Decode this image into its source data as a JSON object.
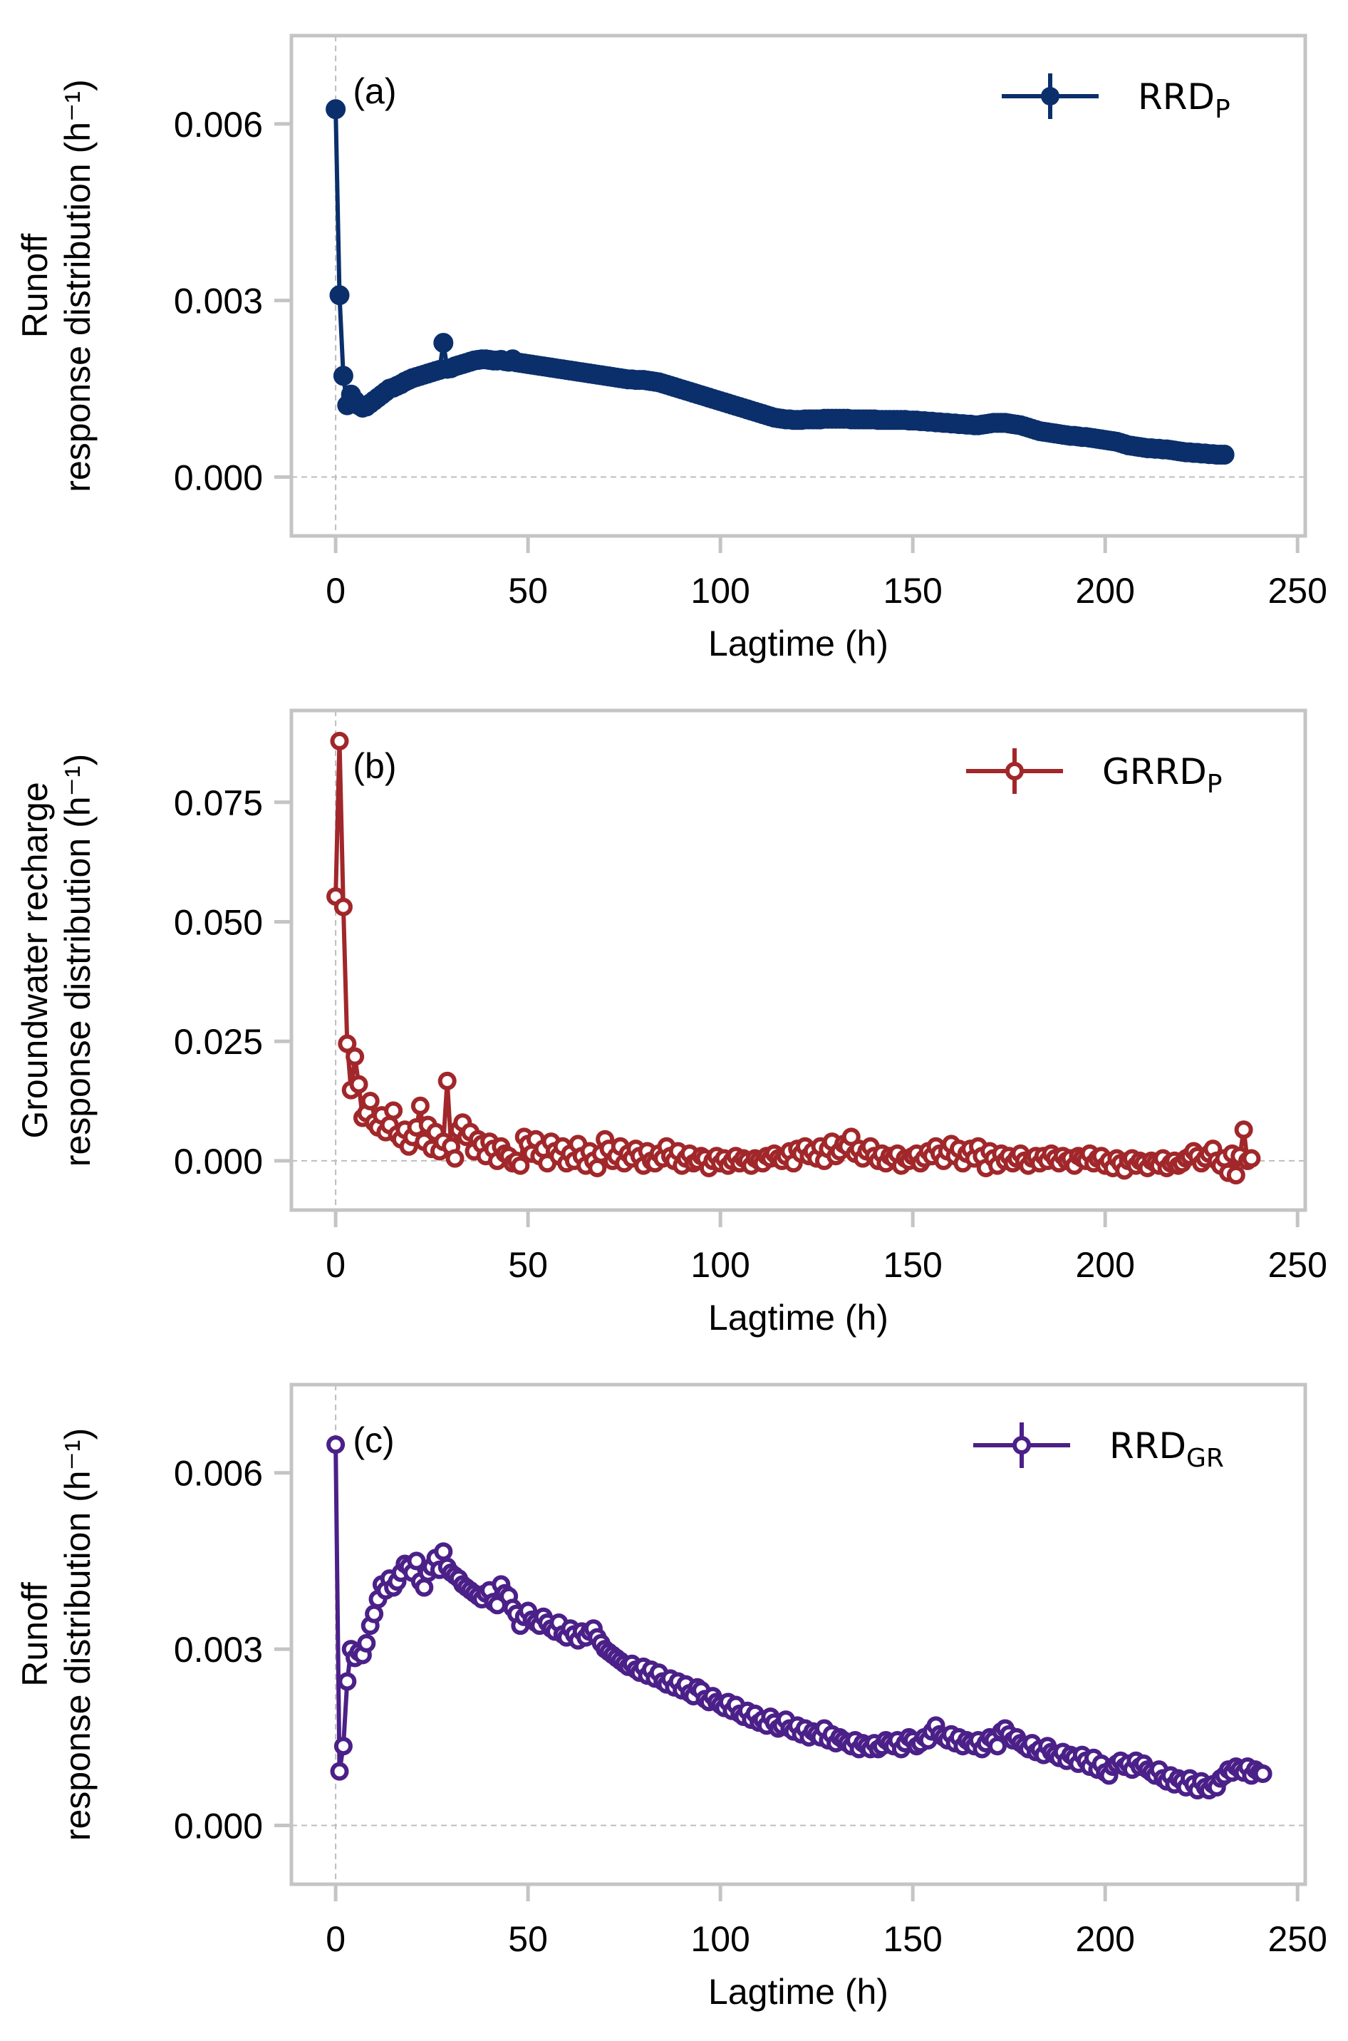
{
  "chart_data": [
    {
      "type": "line",
      "panel_label": "(a)",
      "xlabel": "Lagtime (h)",
      "ylabel_lines": [
        "Runoff",
        "response distribution (h⁻¹)"
      ],
      "xlim": [
        -11.5,
        252
      ],
      "ylim": [
        -0.001,
        0.0075
      ],
      "xticks": [
        0,
        50,
        100,
        150,
        200,
        250
      ],
      "xtick_labels": [
        "0",
        "50",
        "100",
        "150",
        "200",
        "250"
      ],
      "yticks": [
        0.0,
        0.003,
        0.006
      ],
      "ytick_labels": [
        "0.000",
        "0.003",
        "0.006"
      ],
      "zero_lines": true,
      "legend": {
        "label": "RRD",
        "subscript": "P",
        "placement": "top-right"
      },
      "marker": "filled-circle",
      "color": "#0a2f6b",
      "series": [
        {
          "name": "RRD_P",
          "x_start": 0,
          "x_step": 1,
          "values": [
            0.00625,
            0.00309,
            0.00172,
            0.00122,
            0.0014,
            0.0013,
            0.00122,
            0.00118,
            0.0012,
            0.00125,
            0.0013,
            0.00135,
            0.0014,
            0.00145,
            0.0015,
            0.00152,
            0.00155,
            0.00158,
            0.00162,
            0.00165,
            0.00168,
            0.0017,
            0.00172,
            0.00174,
            0.00176,
            0.00178,
            0.0018,
            0.00182,
            0.00228,
            0.00184,
            0.00185,
            0.00188,
            0.0019,
            0.00192,
            0.00194,
            0.00196,
            0.00198,
            0.00199,
            0.002,
            0.002,
            0.00199,
            0.00198,
            0.00198,
            0.00199,
            0.00197,
            0.00196,
            0.002,
            0.00195,
            0.00194,
            0.00193,
            0.00192,
            0.00191,
            0.0019,
            0.00189,
            0.00188,
            0.00187,
            0.00186,
            0.00185,
            0.00184,
            0.00183,
            0.00182,
            0.00181,
            0.0018,
            0.00179,
            0.00178,
            0.00177,
            0.00176,
            0.00175,
            0.00174,
            0.00173,
            0.00172,
            0.00171,
            0.0017,
            0.00169,
            0.00168,
            0.00167,
            0.00166,
            0.00166,
            0.00165,
            0.00165,
            0.00165,
            0.00164,
            0.00163,
            0.00162,
            0.00161,
            0.00159,
            0.00157,
            0.00155,
            0.00153,
            0.00151,
            0.00149,
            0.00147,
            0.00145,
            0.00143,
            0.00141,
            0.00139,
            0.00137,
            0.00135,
            0.00133,
            0.00131,
            0.00129,
            0.00127,
            0.00125,
            0.00123,
            0.00121,
            0.00119,
            0.00117,
            0.00115,
            0.00113,
            0.00111,
            0.00109,
            0.00107,
            0.00105,
            0.00103,
            0.00101,
            0.001,
            0.00099,
            0.00098,
            0.00098,
            0.00097,
            0.00097,
            0.00097,
            0.00098,
            0.00098,
            0.00098,
            0.00098,
            0.00098,
            0.00099,
            0.00099,
            0.00099,
            0.00099,
            0.00099,
            0.00099,
            0.00099,
            0.00098,
            0.00098,
            0.00098,
            0.00098,
            0.00098,
            0.00098,
            0.00098,
            0.00097,
            0.00097,
            0.00097,
            0.00097,
            0.00097,
            0.00097,
            0.00097,
            0.00097,
            0.00096,
            0.00096,
            0.00096,
            0.00095,
            0.00095,
            0.00094,
            0.00094,
            0.00093,
            0.00093,
            0.00092,
            0.00092,
            0.00091,
            0.00091,
            0.0009,
            0.0009,
            0.00089,
            0.00089,
            0.00088,
            0.00088,
            0.00089,
            0.0009,
            0.00091,
            0.00092,
            0.00092,
            0.00092,
            0.00092,
            0.00091,
            0.0009,
            0.00089,
            0.00088,
            0.00086,
            0.00084,
            0.00082,
            0.0008,
            0.00078,
            0.00077,
            0.00076,
            0.00075,
            0.00074,
            0.00073,
            0.00072,
            0.00071,
            0.0007,
            0.0007,
            0.00069,
            0.00068,
            0.00068,
            0.00067,
            0.00066,
            0.00065,
            0.00064,
            0.00063,
            0.00062,
            0.00061,
            0.0006,
            0.00058,
            0.00056,
            0.00054,
            0.00053,
            0.00052,
            0.00051,
            0.0005,
            0.00049,
            0.00049,
            0.00048,
            0.00048,
            0.00047,
            0.00047,
            0.00046,
            0.00045,
            0.00044,
            0.00043,
            0.00042,
            0.00042,
            0.00041,
            0.00041,
            0.0004,
            0.0004,
            0.00039,
            0.00039,
            0.00038,
            0.00038,
            0.00038
          ]
        }
      ]
    },
    {
      "type": "line",
      "panel_label": "(b)",
      "xlabel": "Lagtime (h)",
      "ylabel_lines": [
        "Groundwater recharge",
        "response distribution (h⁻¹)"
      ],
      "xlim": [
        -11.5,
        252
      ],
      "ylim": [
        -0.0103,
        0.0942
      ],
      "xticks": [
        0,
        50,
        100,
        150,
        200,
        250
      ],
      "xtick_labels": [
        "0",
        "50",
        "100",
        "150",
        "200",
        "250"
      ],
      "yticks": [
        0.0,
        0.025,
        0.05,
        0.075
      ],
      "ytick_labels": [
        "0.000",
        "0.025",
        "0.050",
        "0.075"
      ],
      "zero_lines": true,
      "legend": {
        "label": "GRRD",
        "subscript": "P",
        "placement": "top-right"
      },
      "marker": "open-circle",
      "color": "#a1272a",
      "series": [
        {
          "name": "GRRD_P",
          "x_start": 0,
          "x_step": 1,
          "values": [
            0.0553,
            0.0878,
            0.0531,
            0.0245,
            0.0148,
            0.0218,
            0.016,
            0.009,
            0.01,
            0.0125,
            0.008,
            0.007,
            0.0095,
            0.006,
            0.0075,
            0.0105,
            0.0055,
            0.0045,
            0.0065,
            0.003,
            0.005,
            0.007,
            0.0115,
            0.004,
            0.0075,
            0.0025,
            0.006,
            0.002,
            0.004,
            0.0167,
            0.003,
            0.0005,
            0.0065,
            0.008,
            0.005,
            0.006,
            0.002,
            0.0045,
            0.0035,
            0.001,
            0.004,
            0.0025,
            0.0,
            0.003,
            0.0015,
            0.001,
            -0.0005,
            0.0,
            -0.001,
            0.005,
            0.0035,
            0.0015,
            0.0045,
            0.001,
            0.0025,
            -0.0005,
            0.004,
            0.002,
            0.001,
            0.003,
            -0.0005,
            0.0015,
            0.0,
            0.0035,
            0.001,
            -0.001,
            0.002,
            0.0,
            -0.0015,
            0.0015,
            0.0045,
            0.0025,
            0.0,
            0.001,
            0.003,
            -0.0005,
            0.0015,
            0.0005,
            0.0025,
            0.001,
            -0.001,
            0.002,
            0.0,
            -0.0005,
            0.0015,
            0.0005,
            0.003,
            0.001,
            0.0,
            0.002,
            -0.001,
            0.0005,
            0.0015,
            -0.0005,
            0.0,
            0.001,
            0.0005,
            -0.0015,
            0.0,
            0.001,
            -0.0005,
            0.0005,
            -0.001,
            0.0,
            0.001,
            -0.0005,
            0.0005,
            0.0,
            -0.001,
            0.0005,
            0.0,
            -0.0005,
            0.001,
            0.0005,
            0.0015,
            0.0005,
            0.0,
            0.001,
            0.002,
            -0.0005,
            0.0025,
            0.0015,
            0.003,
            0.001,
            0.002,
            0.0005,
            0.003,
            0.0,
            0.0025,
            0.004,
            0.001,
            0.002,
            0.0035,
            0.003,
            0.005,
            0.0015,
            0.0025,
            0.0005,
            0.002,
            0.003,
            0.001,
            0.0,
            0.0015,
            -0.0005,
            0.001,
            0.0005,
            0.0015,
            -0.001,
            0.0005,
            0.0,
            0.001,
            0.0015,
            -0.0005,
            0.0005,
            0.002,
            0.001,
            0.003,
            0.0015,
            0.0,
            0.002,
            0.0035,
            0.001,
            0.0025,
            -0.0005,
            0.0015,
            0.0025,
            0.0005,
            0.003,
            0.001,
            -0.0015,
            0.002,
            0.0005,
            -0.001,
            0.0015,
            0.0,
            0.001,
            -0.0005,
            0.0005,
            0.0015,
            0.0,
            -0.001,
            0.0005,
            0.001,
            -0.0005,
            0.001,
            0.0,
            0.0015,
            0.0005,
            -0.0005,
            0.001,
            0.0,
            0.0005,
            -0.001,
            0.001,
            0.0005,
            0.0,
            0.0015,
            -0.0005,
            0.0005,
            0.001,
            -0.001,
            0.0,
            -0.0015,
            0.0005,
            -0.0005,
            -0.002,
            0.0,
            0.0005,
            -0.001,
            0.0,
            -0.0005,
            -0.0015,
            0.0,
            -0.0005,
            -0.001,
            0.0005,
            -0.0015,
            -0.0005,
            0.0,
            -0.001,
            -0.0005,
            0.0005,
            0.001,
            0.002,
            0.001,
            -0.0005,
            0.0005,
            0.0015,
            0.0025,
            0.0,
            -0.001,
            0.0005,
            -0.0025,
            0.0015,
            -0.003,
            0.001,
            0.0065,
            0.0,
            0.0005
          ]
        }
      ]
    },
    {
      "type": "line",
      "panel_label": "(c)",
      "xlabel": "Lagtime (h)",
      "ylabel_lines": [
        "Runoff",
        "response distribution (h⁻¹)"
      ],
      "xlim": [
        -11.5,
        252
      ],
      "ylim": [
        -0.001,
        0.0075
      ],
      "xticks": [
        0,
        50,
        100,
        150,
        200,
        250
      ],
      "xtick_labels": [
        "0",
        "50",
        "100",
        "150",
        "200",
        "250"
      ],
      "yticks": [
        0.0,
        0.003,
        0.006
      ],
      "ytick_labels": [
        "0.000",
        "0.003",
        "0.006"
      ],
      "zero_lines": true,
      "legend": {
        "label": "RRD",
        "subscript": "GR",
        "placement": "top-right"
      },
      "marker": "open-circle",
      "color": "#4b2088",
      "series": [
        {
          "name": "RRD_GR",
          "x_start": 0,
          "x_step": 1,
          "values": [
            0.00648,
            0.00092,
            0.00135,
            0.00245,
            0.003,
            0.00285,
            0.00295,
            0.0029,
            0.0031,
            0.0034,
            0.0036,
            0.00385,
            0.0041,
            0.004,
            0.0042,
            0.00405,
            0.00415,
            0.0043,
            0.00445,
            0.0044,
            0.0043,
            0.0045,
            0.00415,
            0.00405,
            0.0043,
            0.0044,
            0.00455,
            0.00435,
            0.00466,
            0.0044,
            0.0043,
            0.00425,
            0.0042,
            0.0041,
            0.00405,
            0.004,
            0.00395,
            0.0039,
            0.00385,
            0.00395,
            0.004,
            0.0038,
            0.00375,
            0.0041,
            0.00395,
            0.0039,
            0.0037,
            0.0036,
            0.0034,
            0.00355,
            0.00365,
            0.0035,
            0.00345,
            0.0034,
            0.00355,
            0.00345,
            0.00335,
            0.0033,
            0.00345,
            0.00325,
            0.0032,
            0.00335,
            0.00325,
            0.00315,
            0.0033,
            0.0032,
            0.0033,
            0.00335,
            0.0032,
            0.0031,
            0.003,
            0.00295,
            0.0029,
            0.00285,
            0.0028,
            0.00275,
            0.0027,
            0.00275,
            0.00265,
            0.0026,
            0.0027,
            0.00255,
            0.00265,
            0.0025,
            0.0026,
            0.00245,
            0.0024,
            0.0025,
            0.00235,
            0.00245,
            0.0023,
            0.0024,
            0.00225,
            0.0022,
            0.00235,
            0.0023,
            0.00215,
            0.0021,
            0.0022,
            0.0021,
            0.00205,
            0.002,
            0.0021,
            0.00195,
            0.00205,
            0.0019,
            0.00185,
            0.00195,
            0.0018,
            0.0019,
            0.00175,
            0.0018,
            0.0017,
            0.00185,
            0.00175,
            0.00165,
            0.0017,
            0.0018,
            0.00165,
            0.0016,
            0.0017,
            0.00155,
            0.00165,
            0.0015,
            0.0016,
            0.00155,
            0.0015,
            0.00165,
            0.00145,
            0.00155,
            0.0014,
            0.0015,
            0.00145,
            0.0014,
            0.00135,
            0.00145,
            0.0013,
            0.0014,
            0.00135,
            0.0013,
            0.0014,
            0.0013,
            0.00135,
            0.00145,
            0.0014,
            0.00135,
            0.00145,
            0.0013,
            0.0014,
            0.0015,
            0.00145,
            0.00135,
            0.0014,
            0.0015,
            0.00145,
            0.0016,
            0.0017,
            0.00155,
            0.0015,
            0.00145,
            0.00155,
            0.0014,
            0.0015,
            0.00135,
            0.00145,
            0.0014,
            0.00135,
            0.00145,
            0.0013,
            0.0014,
            0.0015,
            0.00145,
            0.00135,
            0.0016,
            0.00165,
            0.00155,
            0.00145,
            0.0015,
            0.0014,
            0.00135,
            0.0013,
            0.0014,
            0.00125,
            0.0013,
            0.0012,
            0.00135,
            0.00125,
            0.0012,
            0.00115,
            0.00125,
            0.0011,
            0.0012,
            0.00115,
            0.00105,
            0.0012,
            0.0011,
            0.001,
            0.00115,
            0.00095,
            0.00105,
            0.0009,
            0.00085,
            0.001,
            0.00105,
            0.0011,
            0.001,
            0.00105,
            0.00095,
            0.0011,
            0.001,
            0.00105,
            0.00095,
            0.0009,
            0.00085,
            0.00095,
            0.0008,
            0.00075,
            0.00085,
            0.0007,
            0.0008,
            0.00075,
            0.00065,
            0.0008,
            0.0007,
            0.0006,
            0.00075,
            0.00065,
            0.0006,
            0.0007,
            0.00065,
            0.0008,
            0.00085,
            0.00095,
            0.0009,
            0.001,
            0.00095,
            0.0009,
            0.001,
            0.00085,
            0.00095,
            0.0009,
            0.00088
          ]
        }
      ]
    }
  ]
}
